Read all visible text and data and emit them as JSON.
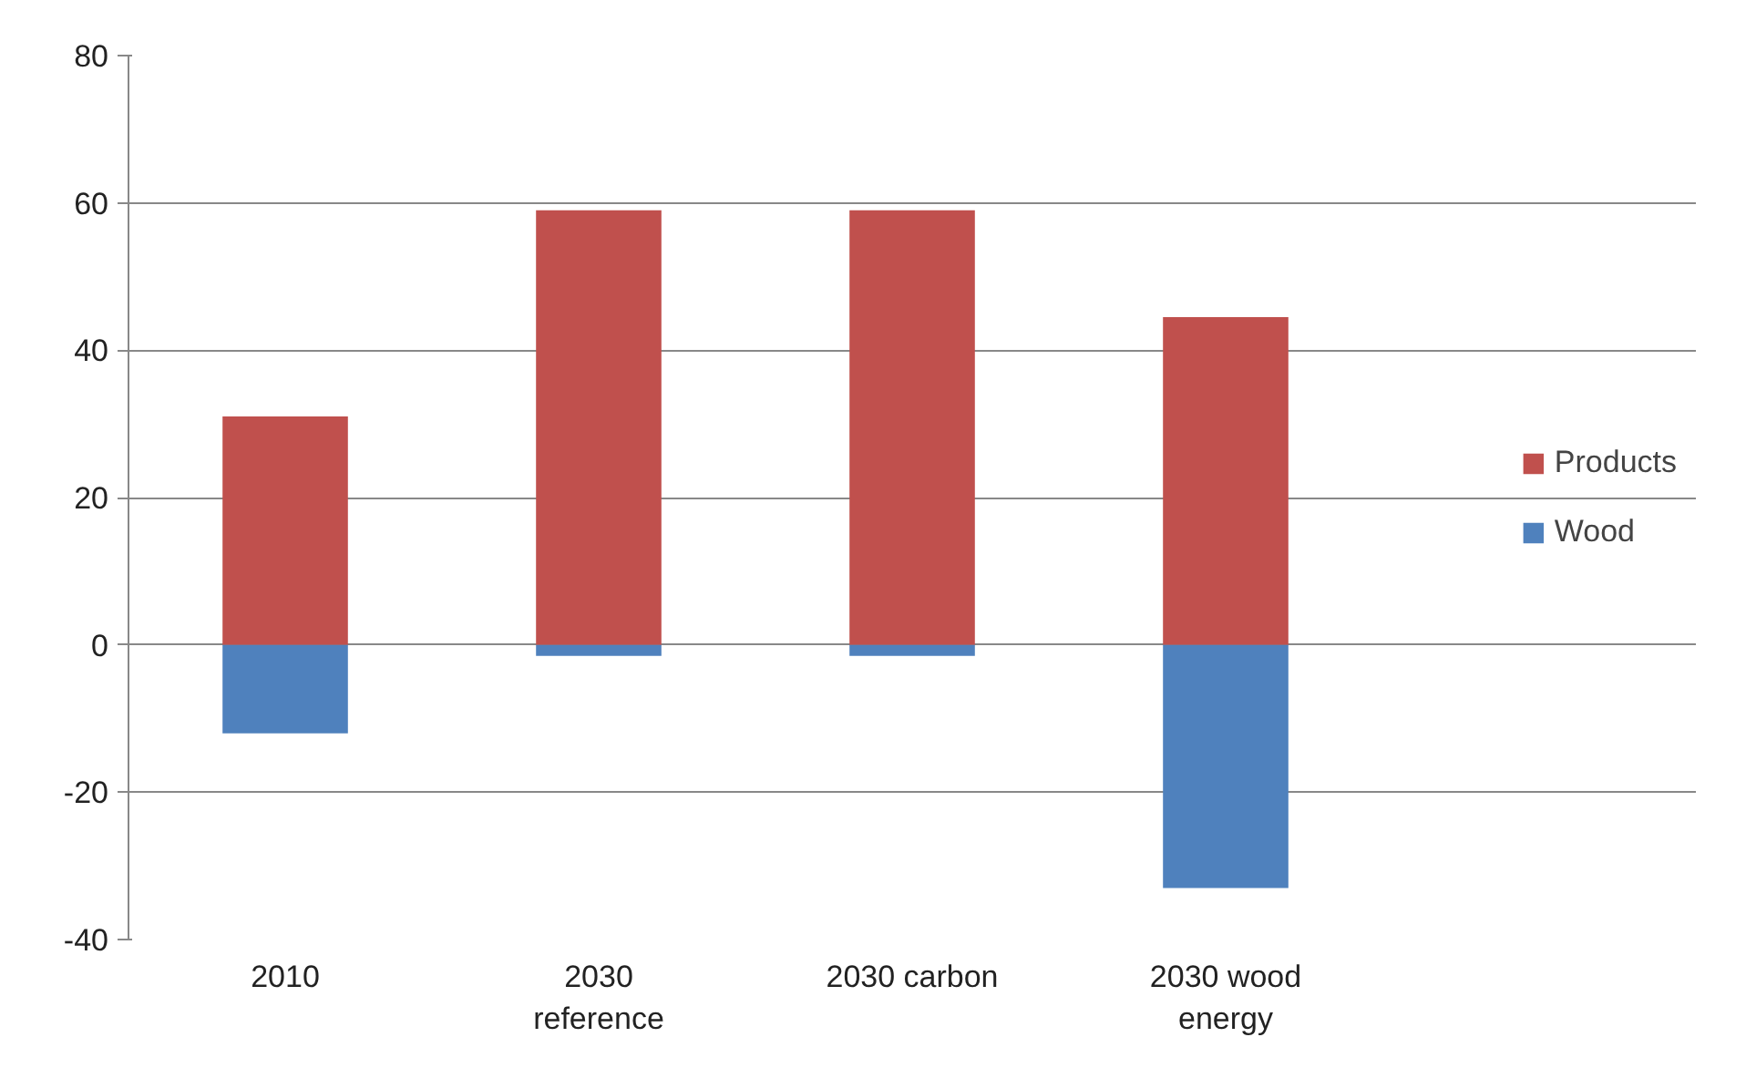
{
  "chart_data": {
    "type": "bar",
    "stacked": true,
    "categories": [
      "2010",
      "2030 reference",
      "2030 carbon",
      "2030 wood energy"
    ],
    "series": [
      {
        "name": "Products",
        "color": "#c0504d",
        "values": [
          31,
          59,
          59,
          44.5
        ]
      },
      {
        "name": "Wood",
        "color": "#4f81bd",
        "values": [
          -12,
          -1.5,
          -1.5,
          -33
        ]
      }
    ],
    "ylim": [
      -40,
      80
    ],
    "yticks": [
      -40,
      -20,
      0,
      20,
      40,
      60,
      80
    ],
    "grid": "y",
    "legend": "right"
  }
}
